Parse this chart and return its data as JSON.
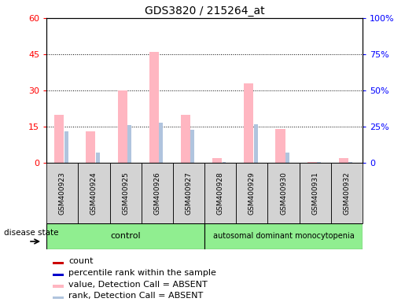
{
  "title": "GDS3820 / 215264_at",
  "samples": [
    "GSM400923",
    "GSM400924",
    "GSM400925",
    "GSM400926",
    "GSM400927",
    "GSM400928",
    "GSM400929",
    "GSM400930",
    "GSM400931",
    "GSM400932"
  ],
  "value_absent": [
    20,
    13,
    30,
    46,
    20,
    2,
    33,
    14,
    0.5,
    2
  ],
  "rank_absent": [
    22,
    7,
    26,
    28,
    23,
    1,
    27,
    7,
    1,
    1
  ],
  "ylim_left": [
    0,
    60
  ],
  "ylim_right": [
    0,
    100
  ],
  "yticks_left": [
    0,
    15,
    30,
    45,
    60
  ],
  "ytick_labels_left": [
    "0",
    "15",
    "30",
    "45",
    "60"
  ],
  "yticks_right": [
    0,
    25,
    50,
    75,
    100
  ],
  "ytick_labels_right": [
    "0",
    "25%",
    "50%",
    "75%",
    "100%"
  ],
  "control_n": 5,
  "control_label": "control",
  "disease_label": "autosomal dominant monocytopenia",
  "disease_state_label": "disease state",
  "control_color": "#90EE90",
  "disease_color": "#90EE90",
  "bar_color_absent_value": "#FFB6C1",
  "bar_color_absent_rank": "#B0C4DE",
  "legend_items": [
    {
      "label": "count",
      "color": "#CC0000"
    },
    {
      "label": "percentile rank within the sample",
      "color": "#0000CC"
    },
    {
      "label": "value, Detection Call = ABSENT",
      "color": "#FFB6C1"
    },
    {
      "label": "rank, Detection Call = ABSENT",
      "color": "#B0C4DE"
    }
  ]
}
